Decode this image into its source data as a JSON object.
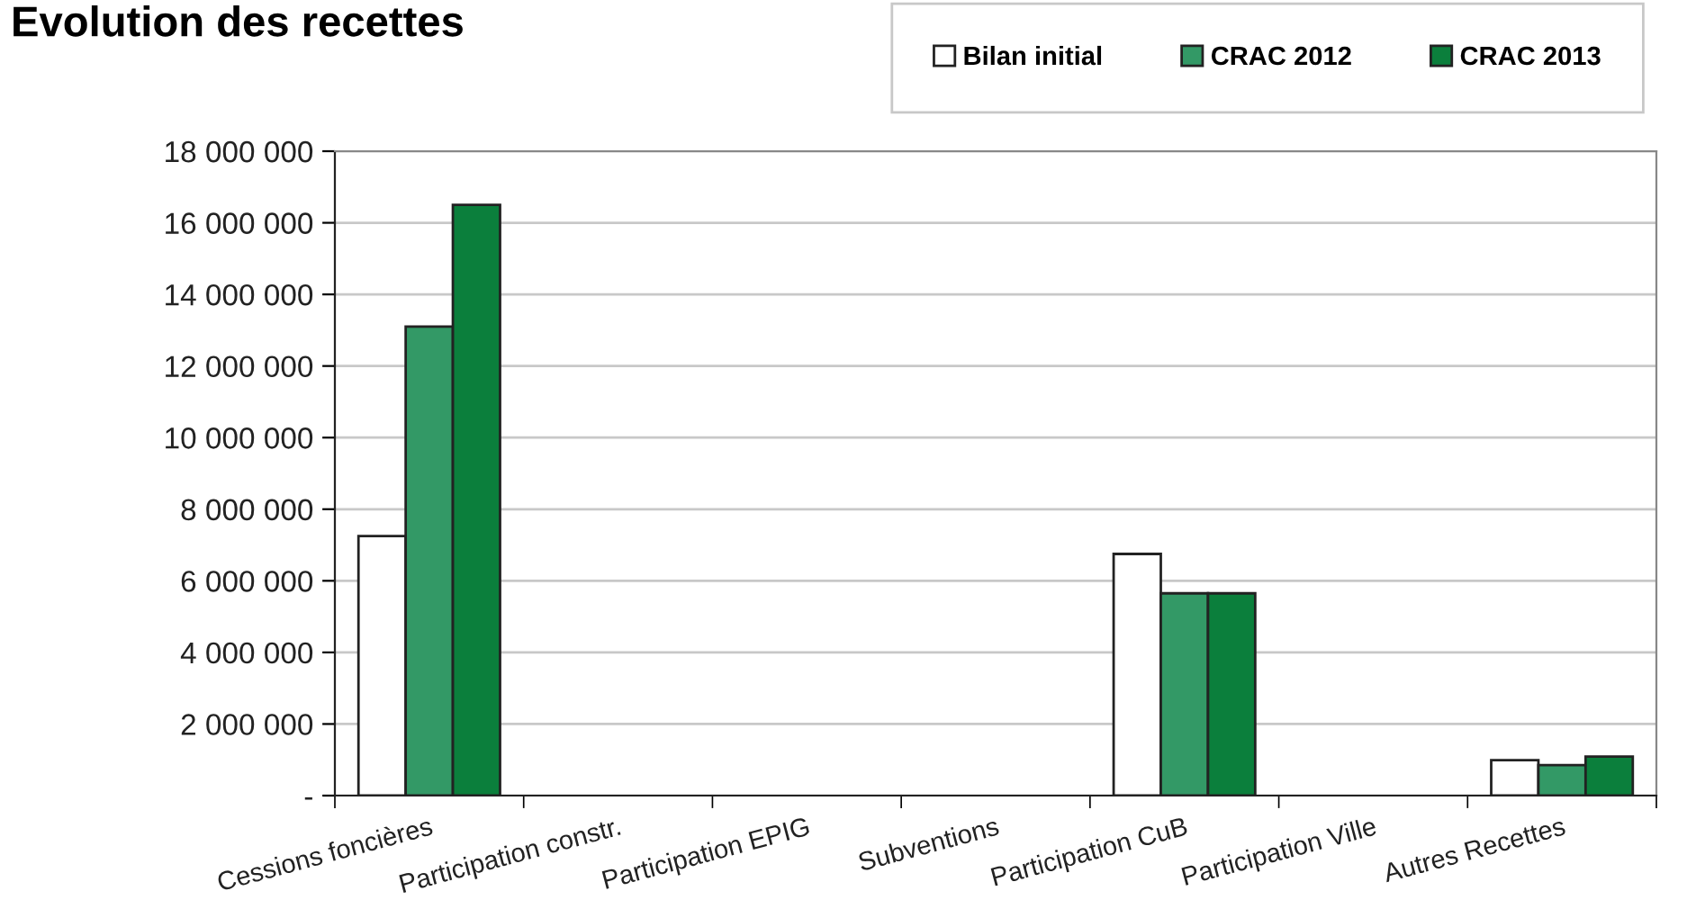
{
  "chart_data": {
    "type": "bar",
    "title": "Evolution des recettes",
    "categories": [
      "Cessions foncières",
      "Participation constr.",
      "Participation EPIG",
      "Subventions",
      "Participation CuB",
      "Participation Ville",
      "Autres Recettes"
    ],
    "series": [
      {
        "name": "Bilan initial",
        "color": "#ffffff",
        "values": [
          7250000,
          null,
          null,
          null,
          6750000,
          null,
          990000
        ]
      },
      {
        "name": "CRAC 2012",
        "color": "#339966",
        "values": [
          13100000,
          null,
          null,
          null,
          5650000,
          null,
          850000
        ]
      },
      {
        "name": "CRAC 2013",
        "color": "#0b7f3c",
        "values": [
          16500000,
          null,
          null,
          null,
          5650000,
          null,
          1090000
        ]
      }
    ],
    "ylim": [
      0,
      18000000
    ],
    "yticks": [
      {
        "value": 0,
        "label": "-"
      },
      {
        "value": 2000000,
        "label": "2 000 000"
      },
      {
        "value": 4000000,
        "label": "4 000 000"
      },
      {
        "value": 6000000,
        "label": "6 000 000"
      },
      {
        "value": 8000000,
        "label": "8 000 000"
      },
      {
        "value": 10000000,
        "label": "10 000 000"
      },
      {
        "value": 12000000,
        "label": "12 000 000"
      },
      {
        "value": 14000000,
        "label": "14 000 000"
      },
      {
        "value": 16000000,
        "label": "16 000 000"
      },
      {
        "value": 18000000,
        "label": "18 000 000"
      }
    ],
    "grid": "y",
    "legend": "top right"
  }
}
